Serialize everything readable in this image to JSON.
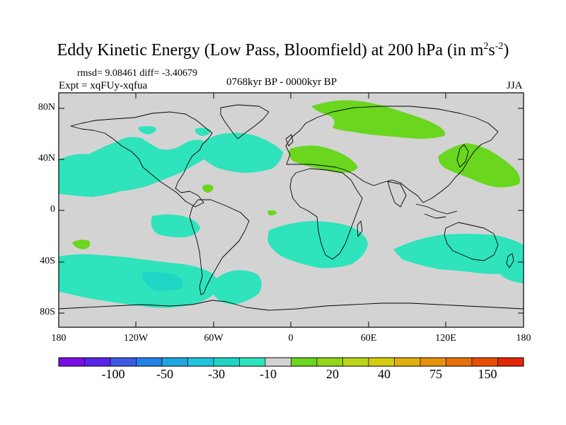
{
  "title": {
    "main": "Eddy Kinetic Energy (Low Pass, Bloomfield) at 200 hPa (in m",
    "sup1": "2",
    "mid": "s",
    "sup2": "-2",
    "end": ")"
  },
  "stats": {
    "rmsd": "rmsd= 9.08461  diff= -3.40679"
  },
  "experiment": "Expt = xqFUy-xqfua",
  "period": "0768kyr BP - 0000kyr BP",
  "season": "JJA",
  "map": {
    "lat_labels": [
      "80N",
      "40N",
      "0",
      "40S",
      "80S"
    ],
    "lon_labels": [
      "180",
      "120W",
      "60W",
      "0",
      "60E",
      "120E",
      "180"
    ]
  },
  "colors": {
    "neutral": "#d3d3d3",
    "negative_10": "#2fe3bc",
    "positive_20": "#6ad61e"
  },
  "colorbar": {
    "colors": [
      "#7a0ee0",
      "#5a23e8",
      "#3a5ae6",
      "#2382e6",
      "#1fa6e0",
      "#20c4da",
      "#1fd6c6",
      "#2fe3bc",
      "#d3d3d3",
      "#6ad61e",
      "#93d61a",
      "#bad616",
      "#d6cc12",
      "#e0b00e",
      "#e6900c",
      "#e8700a",
      "#e64e08",
      "#e02806"
    ],
    "labels": [
      "-100",
      "-50",
      "-30",
      "-10",
      "20",
      "40",
      "75",
      "150"
    ]
  }
}
